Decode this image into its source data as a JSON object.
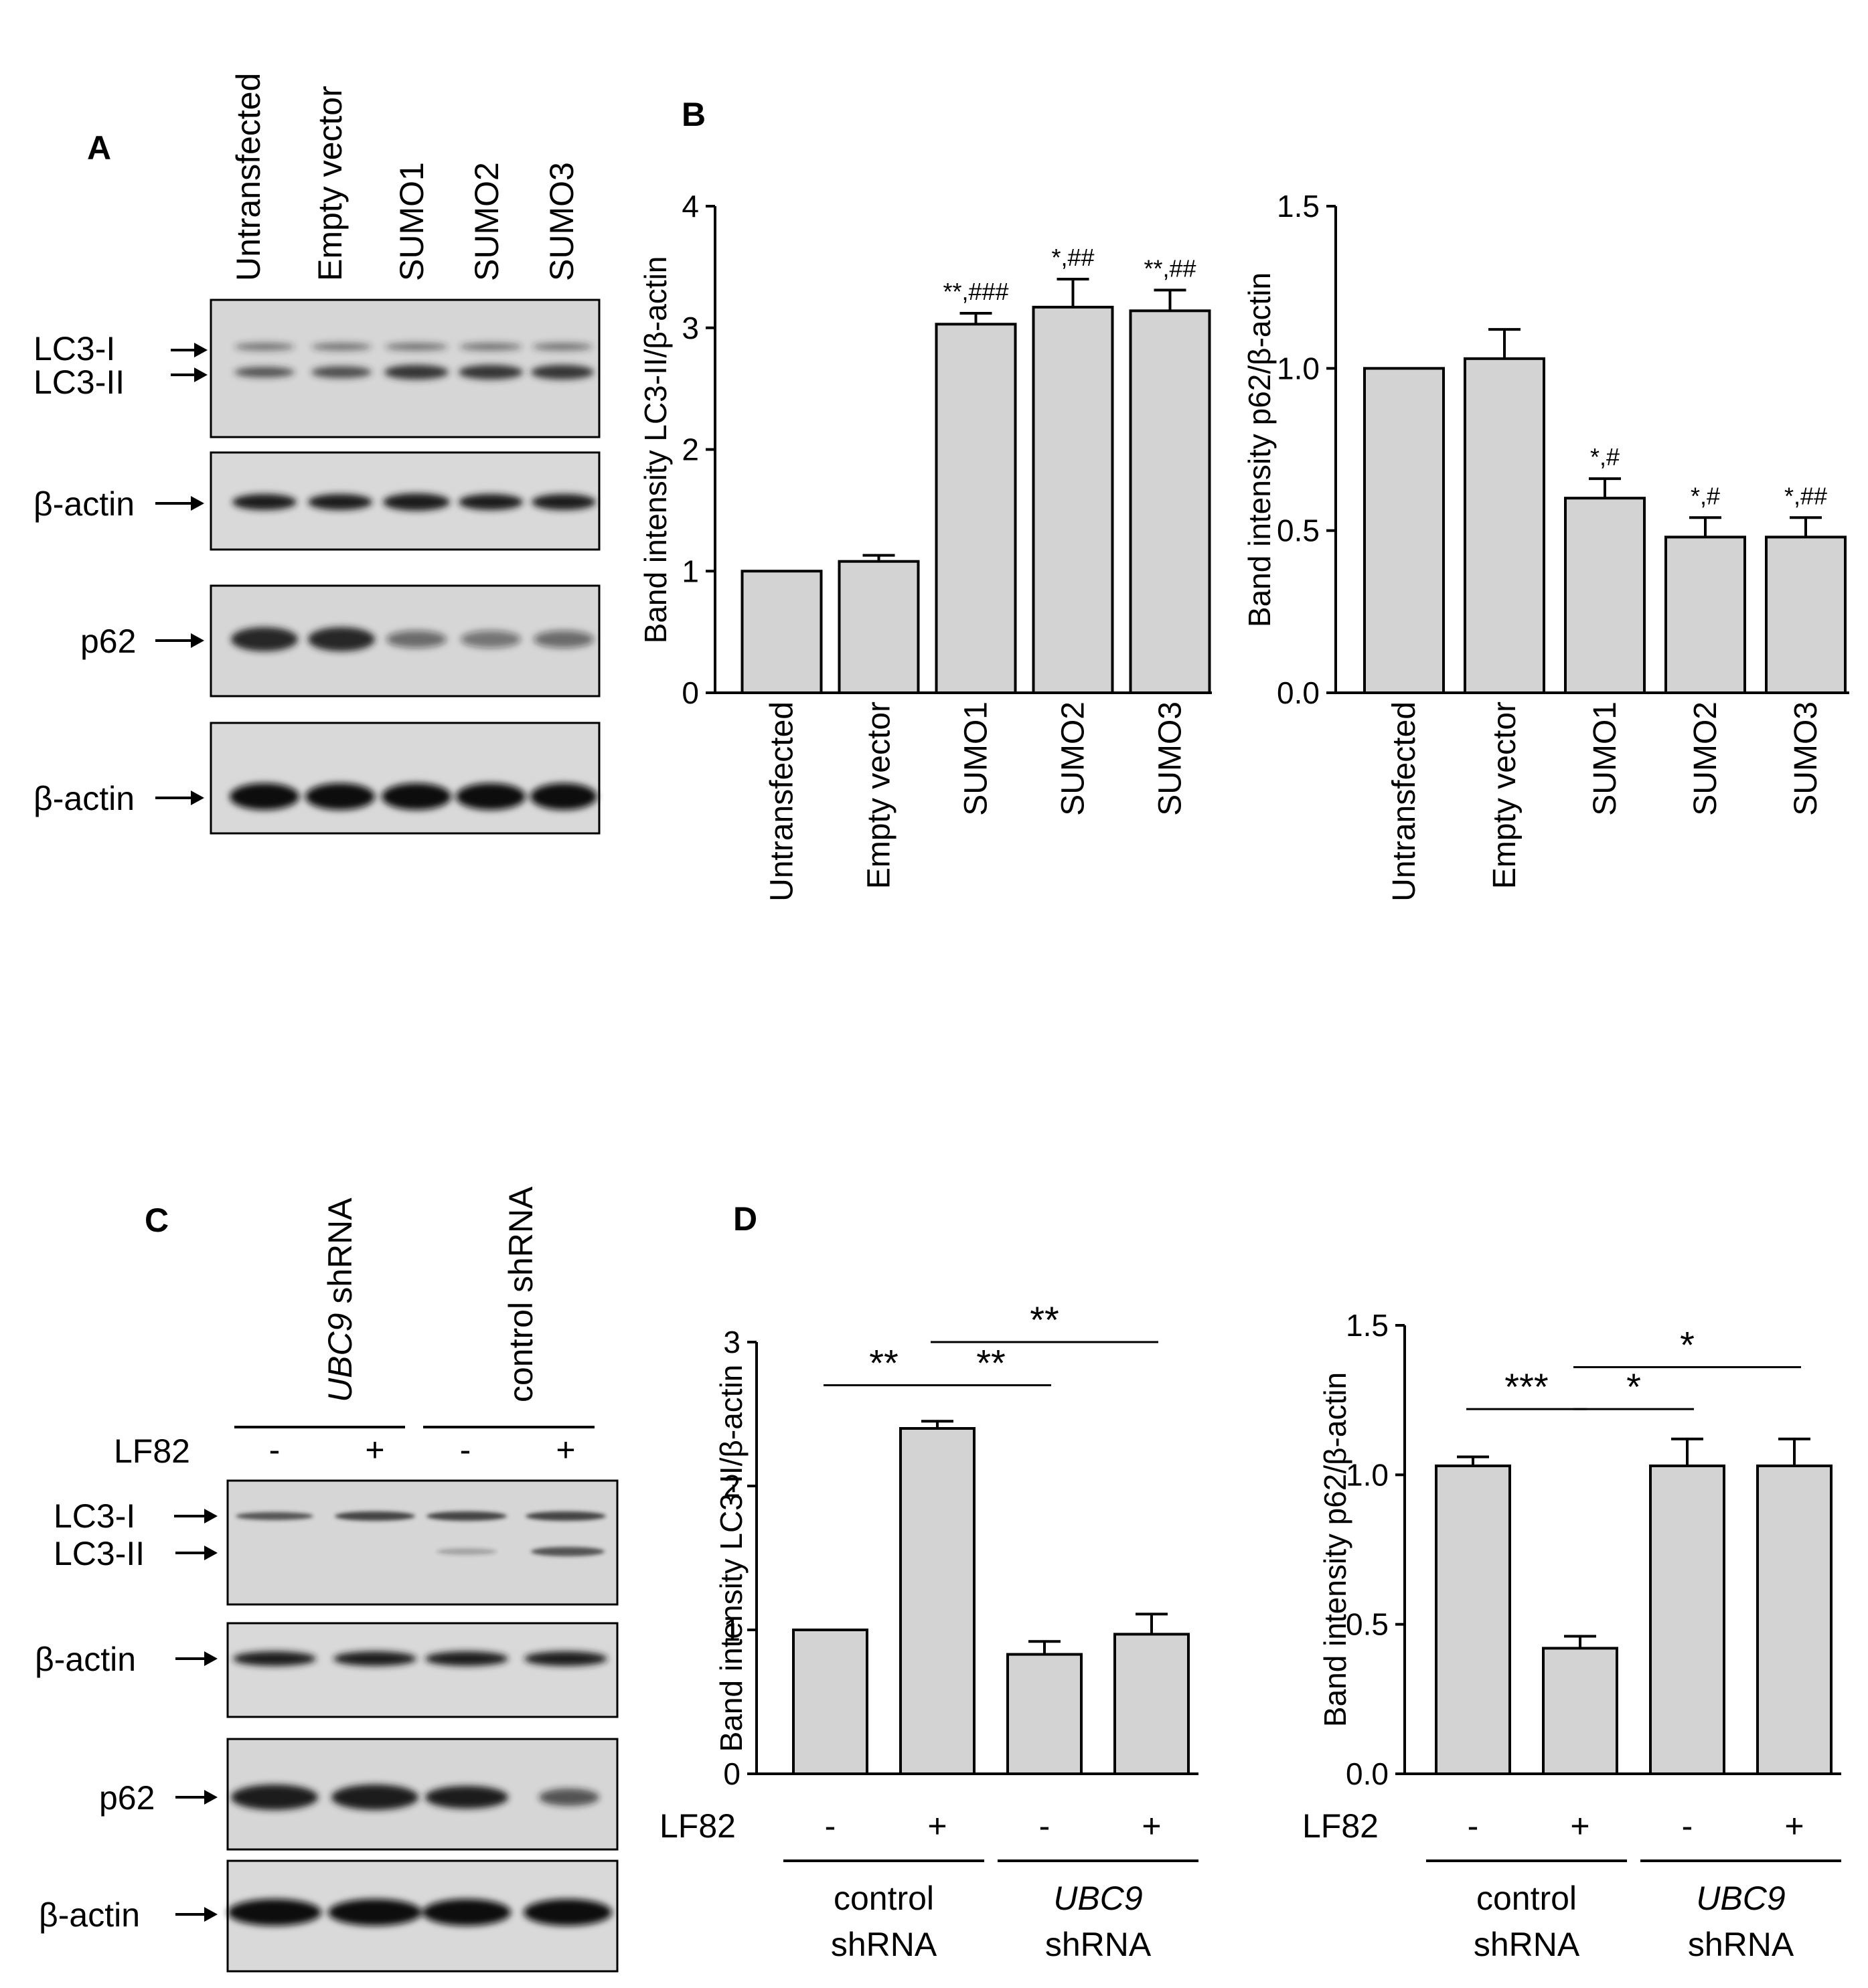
{
  "colors": {
    "bar_fill": "#d3d3d3",
    "stroke": "#000000",
    "blot_bg": "#d9d9d9",
    "band": "#1a1a1a"
  },
  "panels": {
    "A": "A",
    "B": "B",
    "C": "C",
    "D": "D"
  },
  "blotA": {
    "lanes": [
      "Untransfected",
      "Empty vector",
      "SUMO1",
      "SUMO2",
      "SUMO3"
    ],
    "labels": {
      "lc3i": "LC3-I",
      "lc3ii": "LC3-II",
      "actin1": "β-actin",
      "p62": "p62",
      "actin2": "β-actin"
    }
  },
  "blotC": {
    "groups": [
      {
        "name_italic": "UBC9",
        "name_rest": " shRNA"
      },
      {
        "name_italic": "",
        "name_rest": "control shRNA"
      }
    ],
    "lf82_label": "LF82",
    "signs": [
      "-",
      "+",
      "-",
      "+"
    ],
    "labels": {
      "lc3i": "LC3-I",
      "lc3ii": "LC3-II",
      "actin1": "β-actin",
      "p62": "p62",
      "actin2": "β-actin"
    }
  },
  "chart_data": [
    {
      "id": "B-left",
      "type": "bar",
      "ylabel": "Band intensity LC3-II/β-actin",
      "ylim": [
        0,
        4
      ],
      "yticks": [
        0,
        1,
        2,
        3,
        4
      ],
      "tick_labels": [
        "0",
        "1",
        "2",
        "3",
        "4"
      ],
      "categories": [
        "Untransfected",
        "Empty vector",
        "SUMO1",
        "SUMO2",
        "SUMO3"
      ],
      "values": [
        1.0,
        1.08,
        3.03,
        3.17,
        3.14
      ],
      "errors": [
        0,
        0.05,
        0.09,
        0.23,
        0.17
      ],
      "annotations": [
        "",
        "",
        "**,###",
        "*,##",
        "**,##"
      ]
    },
    {
      "id": "B-right",
      "type": "bar",
      "ylabel": "Band intensity p62/β-actin",
      "ylim": [
        0,
        1.5
      ],
      "yticks": [
        0,
        0.5,
        1.0,
        1.5
      ],
      "tick_labels": [
        "0.0",
        "0.5",
        "1.0",
        "1.5"
      ],
      "categories": [
        "Untransfected",
        "Empty vector",
        "SUMO1",
        "SUMO2",
        "SUMO3"
      ],
      "values": [
        1.0,
        1.03,
        0.6,
        0.48,
        0.48
      ],
      "errors": [
        0,
        0.09,
        0.06,
        0.06,
        0.06
      ],
      "annotations": [
        "",
        "",
        "*,#",
        "*,#",
        "*,##"
      ]
    },
    {
      "id": "D-left",
      "type": "bar",
      "ylabel": "Band intensity LC3-II/β-actin",
      "ylim": [
        0,
        3
      ],
      "yticks": [
        0,
        1,
        2,
        3
      ],
      "tick_labels": [
        "0",
        "1",
        "2",
        "3"
      ],
      "categories": [
        "-",
        "+",
        "-",
        "+"
      ],
      "values": [
        1.0,
        2.4,
        0.83,
        0.97
      ],
      "errors": [
        0,
        0.05,
        0.09,
        0.14
      ],
      "brackets": [
        {
          "from": 0,
          "to": 1,
          "label": "**",
          "y": 2.7
        },
        {
          "from": 1,
          "to": 2,
          "label": "**",
          "y": 2.7
        },
        {
          "from": 1,
          "to": 3,
          "label": "**",
          "y": 3.0
        }
      ],
      "lf82_label": "LF82",
      "groups": [
        {
          "line1_italic": "",
          "line1": "control",
          "line2": "shRNA"
        },
        {
          "line1_italic": "UBC9",
          "line1": "",
          "line2": "shRNA"
        }
      ]
    },
    {
      "id": "D-right",
      "type": "bar",
      "ylabel": "Band intensity p62/β-actin",
      "ylim": [
        0,
        1.5
      ],
      "yticks": [
        0,
        0.5,
        1.0,
        1.5
      ],
      "tick_labels": [
        "0.0",
        "0.5",
        "1.0",
        "1.5"
      ],
      "categories": [
        "-",
        "+",
        "-",
        "+"
      ],
      "values": [
        1.03,
        0.42,
        1.03,
        1.03
      ],
      "errors": [
        0.03,
        0.04,
        0.09,
        0.09
      ],
      "brackets": [
        {
          "from": 0,
          "to": 1,
          "label": "***",
          "y": 1.22
        },
        {
          "from": 1,
          "to": 2,
          "label": "*",
          "y": 1.22
        },
        {
          "from": 1,
          "to": 3,
          "label": "*",
          "y": 1.36
        }
      ],
      "lf82_label": "LF82",
      "groups": [
        {
          "line1_italic": "",
          "line1": "control",
          "line2": "shRNA"
        },
        {
          "line1_italic": "UBC9",
          "line1": "",
          "line2": "shRNA"
        }
      ]
    }
  ]
}
